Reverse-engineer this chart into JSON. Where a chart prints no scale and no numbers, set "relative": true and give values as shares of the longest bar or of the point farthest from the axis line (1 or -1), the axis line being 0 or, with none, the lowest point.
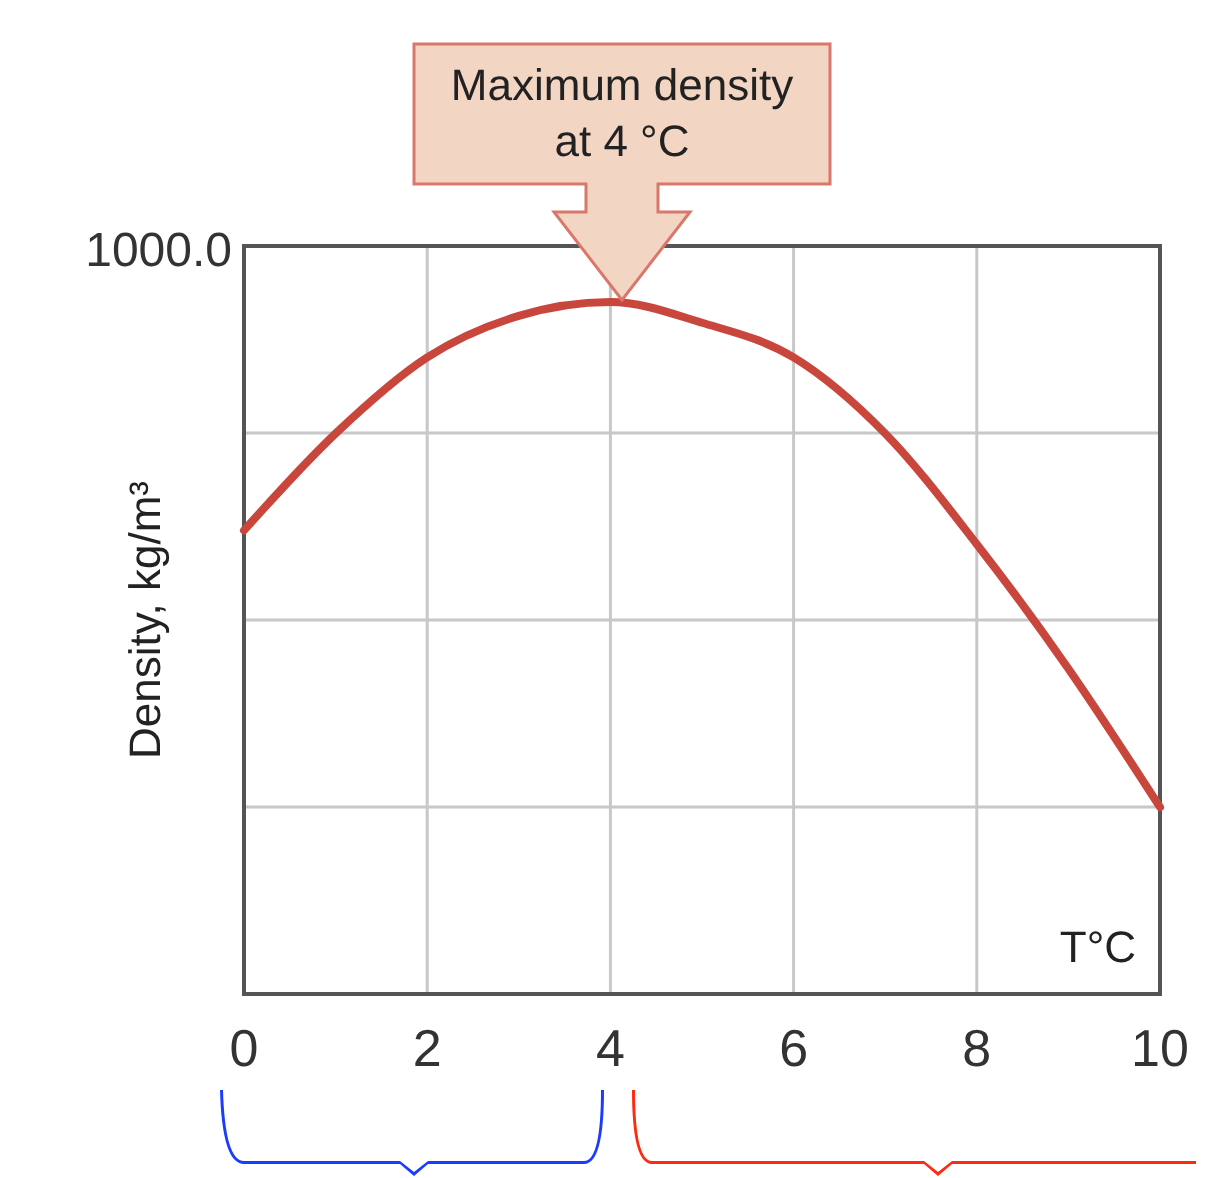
{
  "chart_data": {
    "type": "line",
    "relative": true,
    "xlabel": "T°C",
    "ylabel": "Density, kg/m³",
    "x": [
      0,
      1,
      2,
      3,
      4,
      5,
      6,
      7,
      8,
      9,
      10
    ],
    "series": [
      {
        "color": "#c8463c",
        "values": [
          0.67,
          0.81,
          0.92,
          0.98,
          1,
          0.97,
          0.92,
          0.81,
          0.65,
          0.47,
          0.27
        ]
      }
    ],
    "xlim": [
      0,
      10
    ],
    "xticks": [
      0,
      2,
      4,
      6,
      8,
      10
    ],
    "grid": true,
    "marker": "none",
    "line_style": "solid",
    "annotations": [
      "1000.0",
      "Maximum density at 4 °C"
    ]
  }
}
